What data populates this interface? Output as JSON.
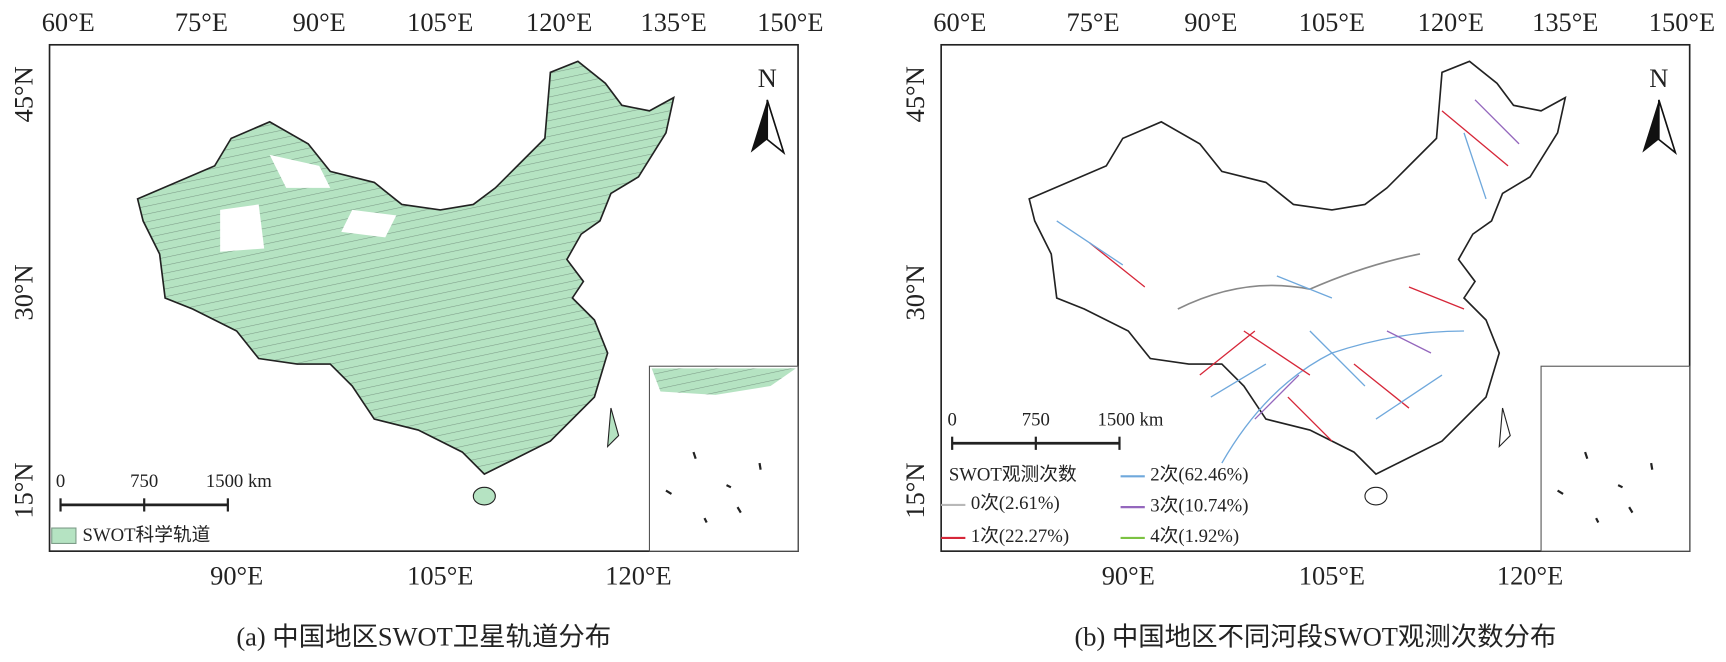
{
  "panels": [
    {
      "top_labels": [
        "60°E",
        "75°E",
        "90°E",
        "105°E",
        "120°E",
        "135°E",
        "150°E"
      ],
      "left_labels": [
        "45°N",
        "30°N",
        "15°N"
      ],
      "bottom_labels": [
        "90°E",
        "105°E",
        "120°E"
      ],
      "north": "N",
      "scale_bar": [
        "0",
        "750",
        "1500 km"
      ],
      "legend": {
        "items": [
          {
            "label": "SWOT科学轨道",
            "color": "#b5e3c2"
          }
        ]
      },
      "caption": "(a) 中国地区SWOT卫星轨道分布"
    },
    {
      "top_labels": [
        "60°E",
        "75°E",
        "90°E",
        "105°E",
        "120°E",
        "135°E",
        "150°E"
      ],
      "left_labels": [
        "45°N",
        "30°N",
        "15°N"
      ],
      "bottom_labels": [
        "90°E",
        "105°E",
        "120°E"
      ],
      "north": "N",
      "scale_bar": [
        "0",
        "750",
        "1500 km"
      ],
      "legend": {
        "title": "SWOT观测次数",
        "items": [
          {
            "label": "0次(2.61%)",
            "color": "#b8b8b8"
          },
          {
            "label": "1次(22.27%)",
            "color": "#d62739"
          },
          {
            "label": "2次(62.46%)",
            "color": "#6fa8dc"
          },
          {
            "label": "3次(10.74%)",
            "color": "#9467bd"
          },
          {
            "label": "4次(1.92%)",
            "color": "#7cc242"
          }
        ]
      },
      "caption": "(b) 中国地区不同河段SWOT观测次数分布"
    }
  ]
}
